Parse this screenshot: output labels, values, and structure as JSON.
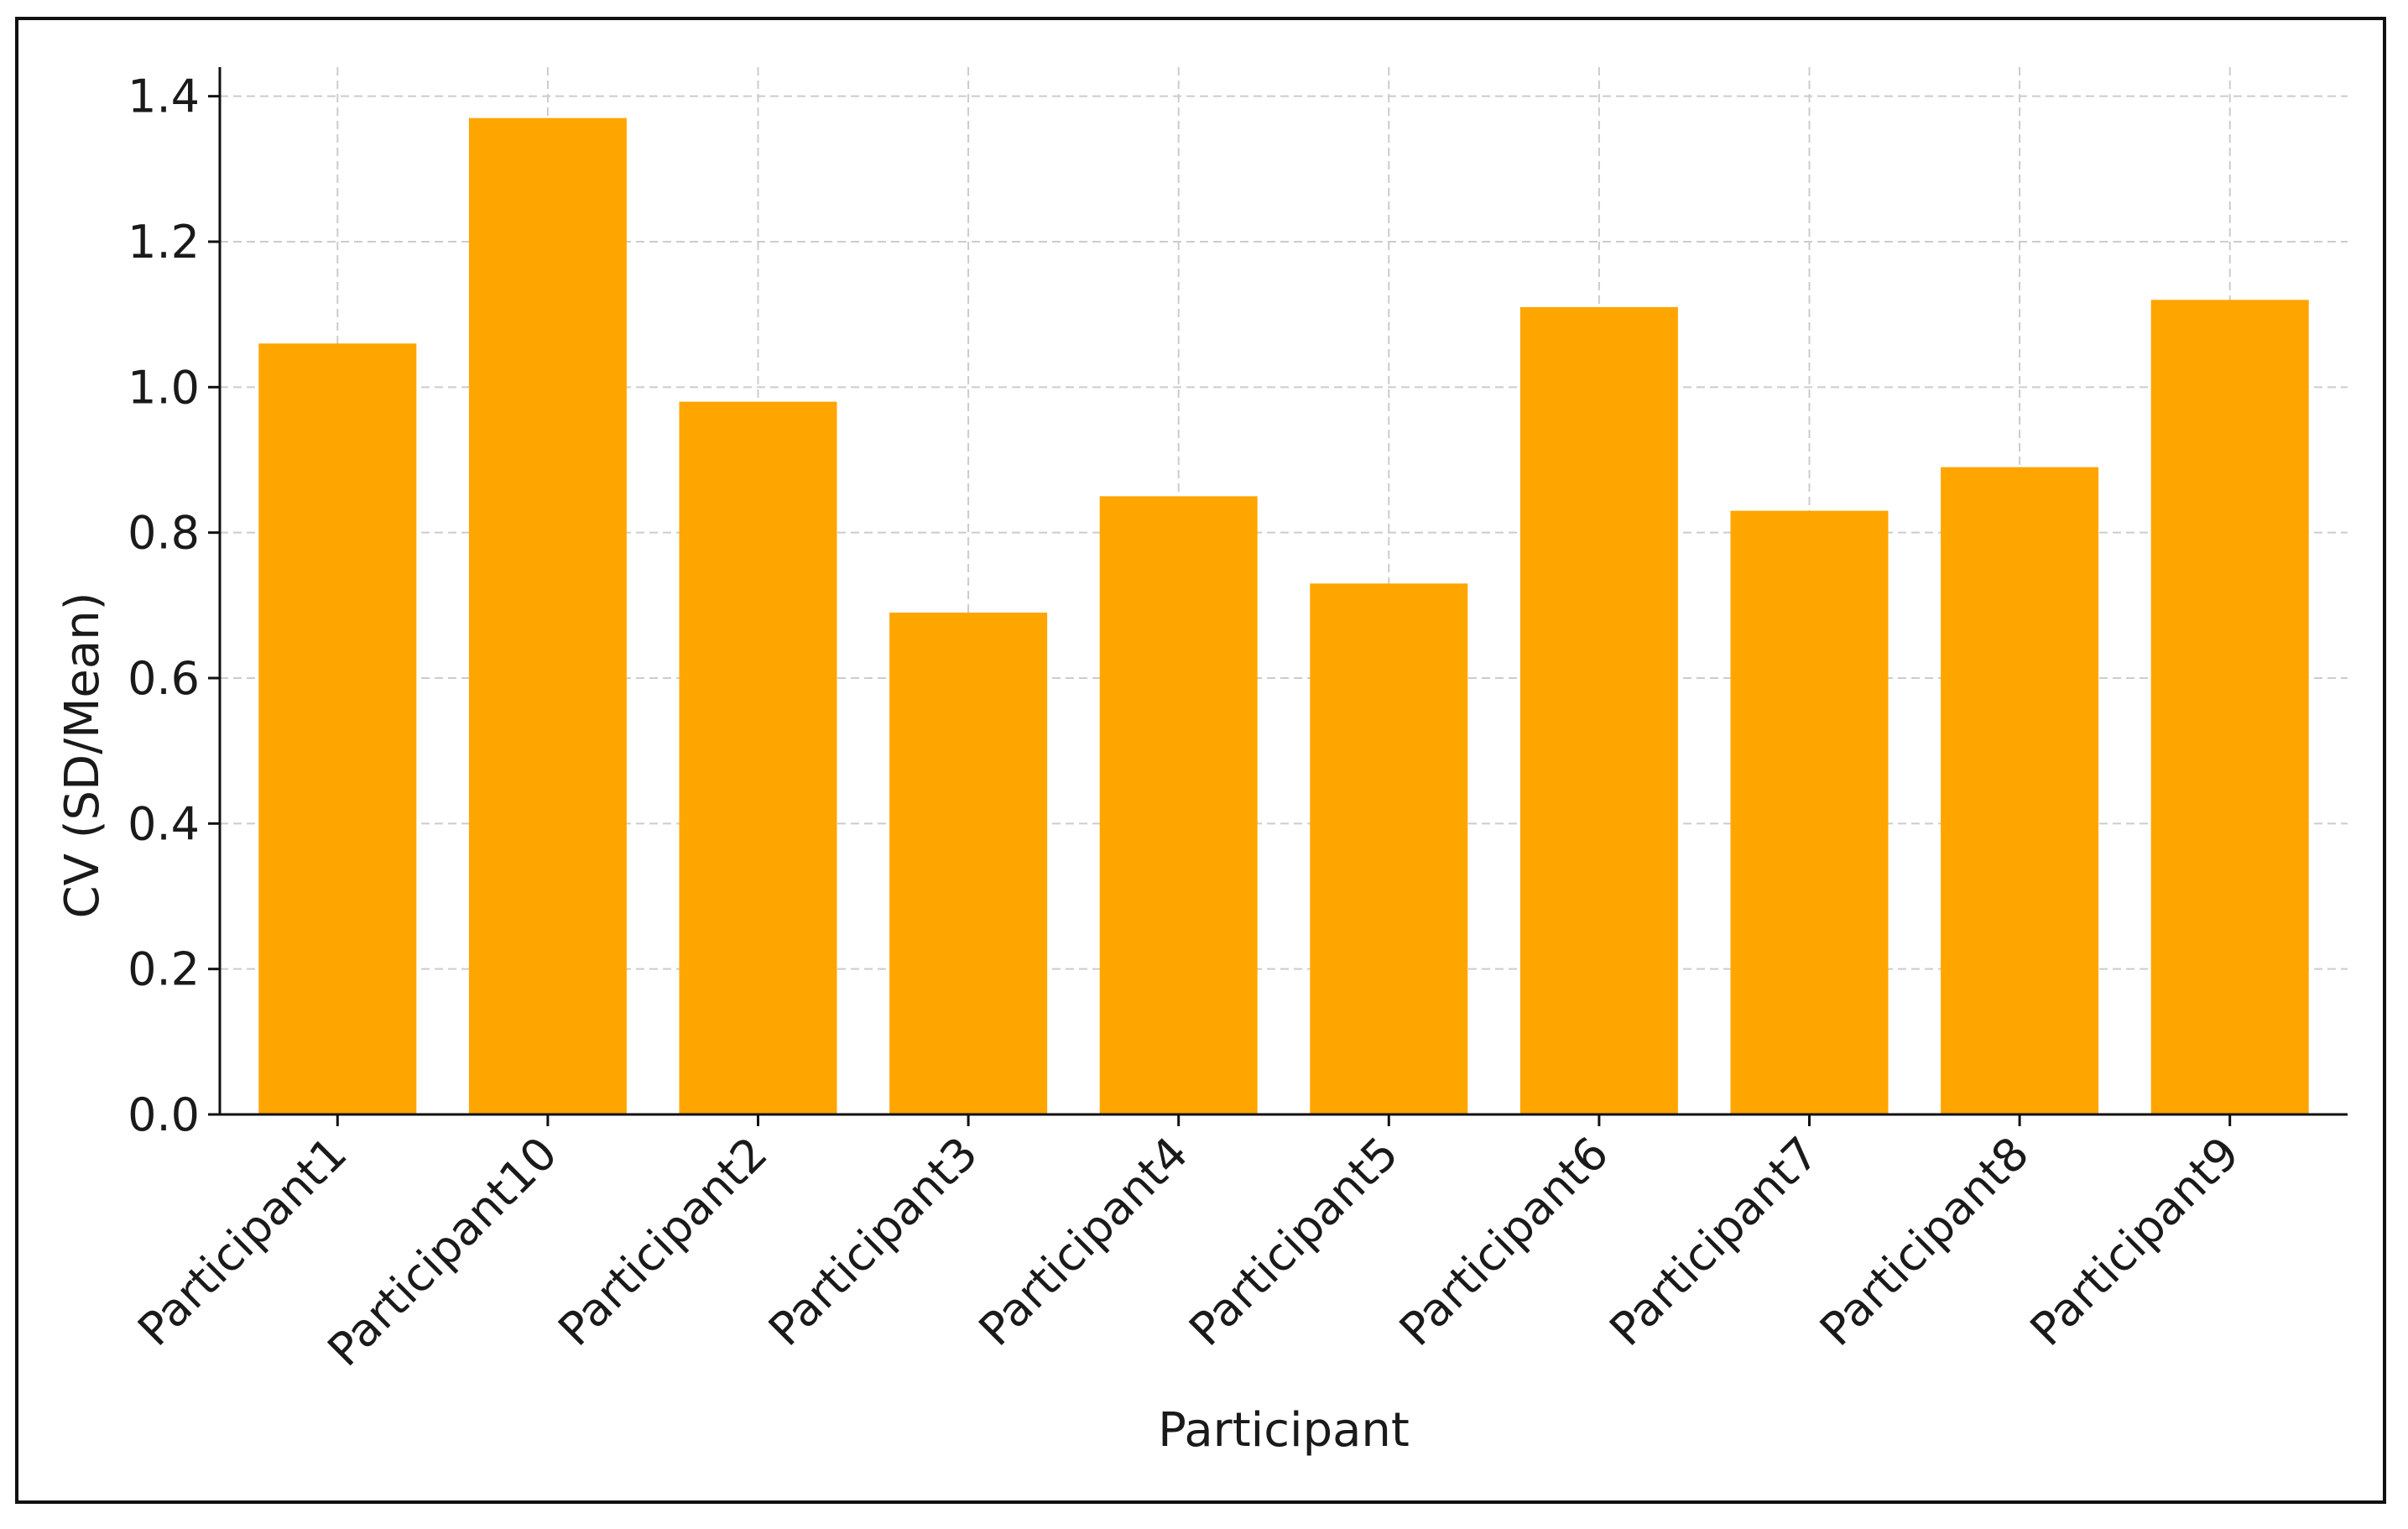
{
  "chart_data": {
    "type": "bar",
    "xlabel": "Participant",
    "ylabel": "CV (SD/Mean)",
    "categories": [
      "Participant1",
      "Participant10",
      "Participant2",
      "Participant3",
      "Participant4",
      "Participant5",
      "Participant6",
      "Participant7",
      "Participant8",
      "Participant9"
    ],
    "values": [
      1.06,
      1.37,
      0.98,
      0.69,
      0.85,
      0.73,
      1.11,
      0.83,
      0.89,
      1.12
    ],
    "ylim": [
      0,
      1.44
    ],
    "yticks": [
      "0.0",
      "0.2",
      "0.4",
      "0.6",
      "0.8",
      "1.0",
      "1.2",
      "1.4"
    ],
    "grid": true,
    "bar_color": "#FFA500",
    "grid_color": "#cccccc"
  }
}
